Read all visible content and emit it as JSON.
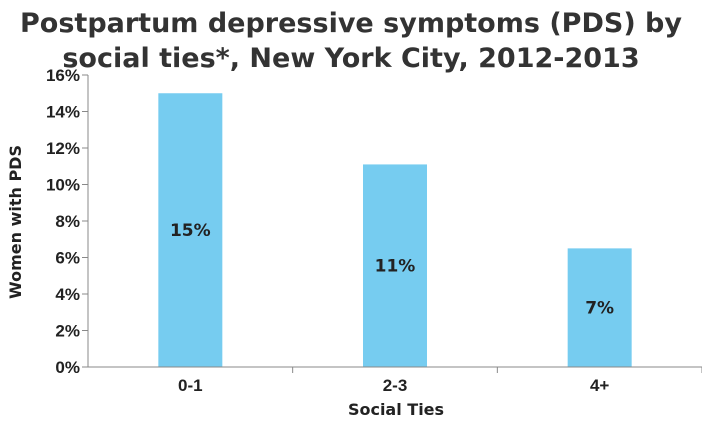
{
  "chart_data": {
    "type": "bar",
    "title_line1": "Postpartum depressive symptoms (PDS) by",
    "title_line2": "social ties*, New York City, 2012-2013",
    "xlabel": "Social Ties",
    "ylabel": "Women with PDS",
    "categories": [
      "0-1",
      "2-3",
      "4+"
    ],
    "values": [
      15.0,
      11.1,
      6.5
    ],
    "data_labels": [
      "15%",
      "11%",
      "7%"
    ],
    "ylim": [
      0,
      16
    ],
    "yticks": [
      "0%",
      "2%",
      "4%",
      "6%",
      "8%",
      "10%",
      "12%",
      "14%",
      "16%"
    ],
    "bar_color": "#76CCF0",
    "grid": false,
    "legend": "none"
  }
}
